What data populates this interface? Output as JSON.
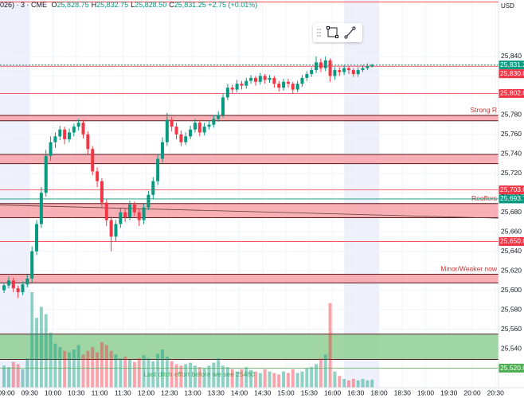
{
  "header": {
    "symbol": "026) · 3 · CME",
    "fields": [
      {
        "label": "O",
        "value": "25,828.75"
      },
      {
        "label": "H",
        "value": "25,832.75"
      },
      {
        "label": "L",
        "value": "25,828.50"
      },
      {
        "label": "C",
        "value": "25,831.25"
      }
    ],
    "change": "+2.75 (+0.01%)",
    "currency": "USD"
  },
  "chart_data": {
    "type": "candlestick",
    "up_color": "#089981",
    "down_color": "#f23645",
    "grid": true,
    "ylim": [
      25500,
      25898
    ],
    "yticks": [
      {
        "value": 25520,
        "label": "25,520"
      },
      {
        "value": 25540,
        "label": "25,540"
      },
      {
        "value": 25560,
        "label": "25,560"
      },
      {
        "value": 25580,
        "label": "25,580"
      },
      {
        "value": 25600,
        "label": "25,600"
      },
      {
        "value": 25620,
        "label": "25,620"
      },
      {
        "value": 25640,
        "label": "25,640"
      },
      {
        "value": 25660,
        "label": "25,660"
      },
      {
        "value": 25680,
        "label": "25,680"
      },
      {
        "value": 25700,
        "label": "25,700"
      },
      {
        "value": 25720,
        "label": "25,720"
      },
      {
        "value": 25740,
        "label": "25,740"
      },
      {
        "value": 25760,
        "label": "25,760"
      },
      {
        "value": 25780,
        "label": "25,780"
      },
      {
        "value": 25800,
        "label": "25,800"
      },
      {
        "value": 25820,
        "label": "25,820"
      },
      {
        "value": 25840,
        "label": "25,840"
      }
    ],
    "xticks": [
      "09:00",
      "09:30",
      "10:00",
      "10:30",
      "11:00",
      "11:30",
      "12:00",
      "12:30",
      "13:00",
      "13:30",
      "14:00",
      "14:30",
      "15:00",
      "15:30",
      "16:00",
      "16:30",
      "18:00",
      "18:30",
      "19:00",
      "19:30",
      "20:00",
      "20:30"
    ],
    "session_break": [
      "17:00",
      "18:00"
    ],
    "highlight_sessions": [
      [
        "08:45",
        "09:30"
      ],
      [
        "16:15",
        "18:00"
      ]
    ],
    "x": [
      "08:54",
      "09:00",
      "09:06",
      "09:12",
      "09:18",
      "09:24",
      "09:30",
      "09:36",
      "09:42",
      "09:48",
      "09:54",
      "10:00",
      "10:06",
      "10:12",
      "10:18",
      "10:24",
      "10:30",
      "10:36",
      "10:42",
      "10:48",
      "10:54",
      "11:00",
      "11:06",
      "11:12",
      "11:18",
      "11:24",
      "11:30",
      "11:36",
      "11:42",
      "11:48",
      "11:54",
      "12:00",
      "12:06",
      "12:12",
      "12:18",
      "12:24",
      "12:30",
      "12:36",
      "12:42",
      "12:48",
      "12:54",
      "13:00",
      "13:06",
      "13:12",
      "13:18",
      "13:24",
      "13:30",
      "13:36",
      "13:42",
      "13:48",
      "13:54",
      "14:00",
      "14:06",
      "14:12",
      "14:18",
      "14:24",
      "14:30",
      "14:36",
      "14:42",
      "14:48",
      "14:54",
      "15:00",
      "15:06",
      "15:12",
      "15:18",
      "15:24",
      "15:30",
      "15:36",
      "15:42",
      "15:48",
      "15:54",
      "16:00",
      "16:06",
      "16:12",
      "16:18",
      "16:24",
      "16:30",
      "16:36",
      "16:42",
      "16:48"
    ],
    "open": [
      25600,
      25605,
      25610,
      25602,
      25598,
      25606,
      25612,
      25640,
      25668,
      25700,
      25738,
      25752,
      25758,
      25765,
      25755,
      25762,
      25768,
      25772,
      25760,
      25745,
      25722,
      25712,
      25690,
      25672,
      25655,
      25668,
      25680,
      25675,
      25688,
      25680,
      25672,
      25685,
      25698,
      25712,
      25735,
      25752,
      25775,
      25768,
      25760,
      25752,
      25758,
      25765,
      25772,
      25762,
      25768,
      25770,
      25776,
      25780,
      25798,
      25808,
      25806,
      25812,
      25810,
      25815,
      25818,
      25814,
      25820,
      25816,
      25818,
      25812,
      25808,
      25814,
      25812,
      25806,
      25812,
      25818,
      25822,
      25826,
      25834,
      25828,
      25836,
      25820,
      25826,
      25824,
      25828,
      25826,
      25822,
      25826,
      25828,
      25830
    ],
    "high": [
      25608,
      25614,
      25613,
      25605,
      25609,
      25616,
      25645,
      25672,
      25706,
      25744,
      25758,
      25762,
      25769,
      25768,
      25766,
      25771,
      25776,
      25775,
      25763,
      25748,
      25726,
      25715,
      25694,
      25676,
      25672,
      25685,
      25684,
      25692,
      25691,
      25684,
      25689,
      25702,
      25716,
      25740,
      25757,
      25782,
      25778,
      25772,
      25764,
      25762,
      25769,
      25776,
      25775,
      25772,
      25774,
      25780,
      25784,
      25802,
      25812,
      25811,
      25816,
      25815,
      25818,
      25821,
      25820,
      25823,
      25822,
      25821,
      25820,
      25815,
      25817,
      25817,
      25814,
      25815,
      25821,
      25825,
      25829,
      25840,
      25838,
      25840,
      25838,
      25829,
      25829,
      25831,
      25830,
      25828,
      25829,
      25831,
      25833,
      25832.75
    ],
    "low": [
      25597,
      25602,
      25598,
      25592,
      25595,
      25603,
      25608,
      25636,
      25664,
      25696,
      25733,
      25746,
      25754,
      25750,
      25752,
      25758,
      25764,
      25756,
      25740,
      25718,
      25706,
      25684,
      25666,
      25640,
      25650,
      25664,
      25670,
      25672,
      25676,
      25666,
      25668,
      25682,
      25694,
      25708,
      25731,
      25748,
      25763,
      25755,
      25748,
      25749,
      25755,
      25762,
      25758,
      25759,
      25765,
      25767,
      25773,
      25777,
      25795,
      25802,
      25803,
      25806,
      25807,
      25812,
      25810,
      25811,
      25812,
      25813,
      25808,
      25804,
      25805,
      25808,
      25802,
      25803,
      25809,
      25815,
      25819,
      25823,
      25824,
      25825,
      25814,
      25816,
      25820,
      25821,
      25822,
      25819,
      25819,
      25824,
      25826,
      25828.5
    ],
    "close": [
      25605,
      25610,
      25602,
      25598,
      25606,
      25612,
      25640,
      25668,
      25700,
      25738,
      25752,
      25758,
      25765,
      25755,
      25762,
      25768,
      25772,
      25760,
      25745,
      25722,
      25712,
      25690,
      25672,
      25655,
      25668,
      25680,
      25675,
      25688,
      25680,
      25672,
      25685,
      25698,
      25712,
      25735,
      25752,
      25775,
      25768,
      25760,
      25752,
      25758,
      25765,
      25772,
      25762,
      25768,
      25770,
      25776,
      25780,
      25798,
      25808,
      25806,
      25812,
      25810,
      25815,
      25818,
      25814,
      25820,
      25816,
      25818,
      25812,
      25808,
      25814,
      25812,
      25806,
      25812,
      25818,
      25822,
      25826,
      25834,
      25828,
      25836,
      25820,
      25826,
      25824,
      25828,
      25826,
      25822,
      25826,
      25828,
      25830,
      25831.25
    ],
    "volume": [
      30,
      28,
      35,
      32,
      25,
      40,
      130,
      95,
      110,
      100,
      75,
      60,
      55,
      50,
      48,
      52,
      58,
      45,
      50,
      55,
      48,
      62,
      58,
      50,
      45,
      40,
      42,
      38,
      35,
      40,
      44,
      40,
      36,
      46,
      52,
      42,
      36,
      32,
      30,
      32,
      34,
      30,
      28,
      26,
      30,
      34,
      40,
      30,
      28,
      25,
      22,
      25,
      28,
      24,
      22,
      20,
      25,
      22,
      20,
      18,
      22,
      20,
      25,
      20,
      22,
      26,
      28,
      32,
      40,
      45,
      115,
      22,
      16,
      12,
      10,
      12,
      10,
      12,
      10,
      11
    ],
    "levels": [
      {
        "price": 25896,
        "color": "#f23645"
      },
      {
        "price": 25831.25,
        "label": "25,831.25",
        "color": "#089981"
      },
      {
        "price": 25830,
        "label": "25,830.00",
        "color": "#f23645"
      },
      {
        "price": 25802,
        "label": "25,802.00",
        "color": "#f23645"
      },
      {
        "price": 25703,
        "label": "25,703.00",
        "color": "#f23645"
      },
      {
        "price": 25693.75,
        "label": "25,693.75",
        "color": "#089981"
      },
      {
        "price": 25650,
        "label": "25,650.00",
        "color": "#f23645"
      },
      {
        "price": 25520,
        "label": "25,520.00",
        "color": "#4caf50"
      }
    ],
    "zones": [
      {
        "from": 25774,
        "to": 25779.5,
        "label": "Strong R",
        "color": "#f7a1a8",
        "label_at": "top"
      },
      {
        "from": 25730,
        "to": 25739.5,
        "color": "#f7a1a8"
      },
      {
        "from": 25674.5,
        "to": 25689,
        "label": "Reoffers",
        "color": "#f7a1a8",
        "label_at": "top"
      },
      {
        "from": 25607.5,
        "to": 25616.5,
        "label": "Minor/Weaker now",
        "color": "#f7a1a8",
        "label_at": "top"
      },
      {
        "from": 25529,
        "to": 25555,
        "label": "Last ditch effort before we see 25460",
        "color": "#8fcf94",
        "label_at": "bottom"
      }
    ],
    "trendline": {
      "start": 25687.5,
      "end": 25674
    }
  }
}
